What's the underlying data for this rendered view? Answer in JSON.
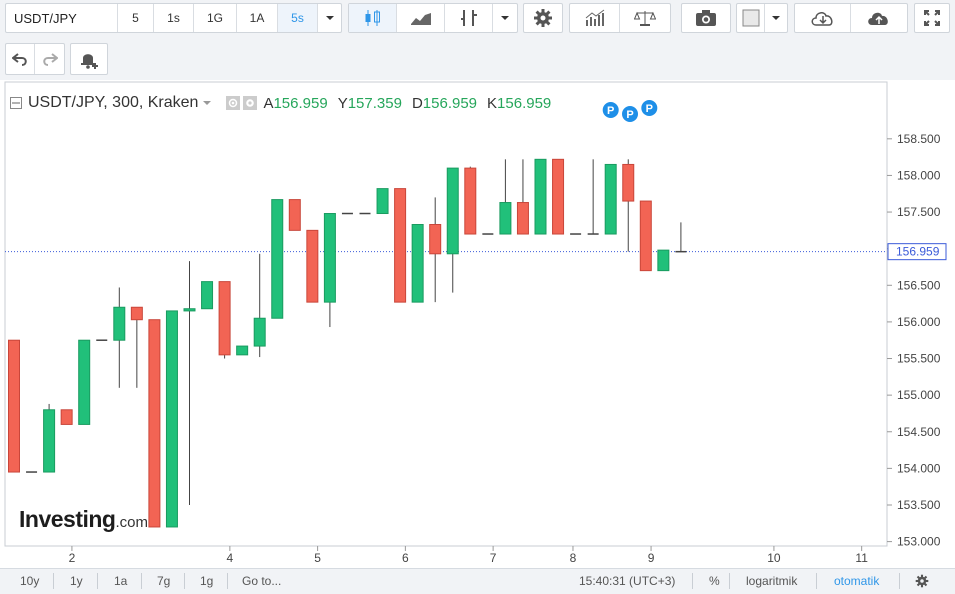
{
  "toolbar": {
    "symbol": "USDT/JPY",
    "intervals": [
      {
        "label": "5",
        "active": false
      },
      {
        "label": "1s",
        "active": false
      },
      {
        "label": "1G",
        "active": false
      },
      {
        "label": "1A",
        "active": false
      },
      {
        "label": "5s",
        "active": true
      }
    ]
  },
  "legend": {
    "title": "USDT/JPY, 300, Kraken",
    "open_label": "A",
    "open": "156.959",
    "high_label": "Y",
    "high": "157.359",
    "low_label": "D",
    "low": "156.959",
    "close_label": "K",
    "close": "156.959"
  },
  "branding": {
    "logo_main": "Investing",
    "logo_suffix": ".com"
  },
  "chart_data": {
    "type": "candlestick",
    "y_ticks": [
      "158.500",
      "158.000",
      "157.500",
      "157.000",
      "156.500",
      "156.000",
      "155.500",
      "155.000",
      "154.500",
      "154.000",
      "153.500",
      "153.000"
    ],
    "y_tick_values": [
      158.5,
      158.0,
      157.5,
      157.0,
      156.5,
      156.0,
      155.5,
      155.0,
      154.5,
      154.0,
      153.5,
      153.0
    ],
    "ylim": [
      152.94,
      159.03
    ],
    "x_ticks": [
      "2",
      "4",
      "5",
      "6",
      "7",
      "8",
      "9",
      "10",
      "11"
    ],
    "x_tick_bars": [
      3.3,
      12.3,
      17.3,
      22.3,
      27.3,
      31.85,
      36.3,
      43.3,
      48.3
    ],
    "last_price": 156.959,
    "last_price_label": "156.959",
    "pivot_markers": [
      "P",
      "P",
      "P"
    ],
    "candles": [
      {
        "o": 155.75,
        "h": 155.75,
        "l": 153.95,
        "c": 153.95
      },
      {
        "o": 153.95,
        "h": 153.95,
        "l": 153.95,
        "c": 153.95
      },
      {
        "o": 153.95,
        "h": 154.88,
        "l": 153.95,
        "c": 154.8
      },
      {
        "o": 154.8,
        "h": 154.8,
        "l": 154.6,
        "c": 154.6
      },
      {
        "o": 154.6,
        "h": 155.75,
        "l": 154.6,
        "c": 155.75
      },
      {
        "o": 155.75,
        "h": 155.75,
        "l": 155.75,
        "c": 155.75
      },
      {
        "o": 155.75,
        "h": 156.47,
        "l": 155.1,
        "c": 156.2
      },
      {
        "o": 156.2,
        "h": 156.2,
        "l": 155.1,
        "c": 156.03
      },
      {
        "o": 156.03,
        "h": 156.03,
        "l": 153.2,
        "c": 153.2
      },
      {
        "o": 153.2,
        "h": 156.15,
        "l": 153.2,
        "c": 156.15
      },
      {
        "o": 156.15,
        "h": 156.83,
        "l": 153.5,
        "c": 156.18
      },
      {
        "o": 156.18,
        "h": 156.55,
        "l": 156.18,
        "c": 156.55
      },
      {
        "o": 156.55,
        "h": 156.55,
        "l": 155.5,
        "c": 155.55
      },
      {
        "o": 155.55,
        "h": 155.67,
        "l": 155.55,
        "c": 155.67
      },
      {
        "o": 155.67,
        "h": 156.93,
        "l": 155.52,
        "c": 156.05
      },
      {
        "o": 156.05,
        "h": 157.67,
        "l": 156.05,
        "c": 157.67
      },
      {
        "o": 157.67,
        "h": 157.67,
        "l": 157.25,
        "c": 157.25
      },
      {
        "o": 157.25,
        "h": 157.25,
        "l": 156.27,
        "c": 156.27
      },
      {
        "o": 156.27,
        "h": 157.48,
        "l": 155.93,
        "c": 157.48
      },
      {
        "o": 157.48,
        "h": 157.48,
        "l": 157.48,
        "c": 157.48
      },
      {
        "o": 157.48,
        "h": 157.48,
        "l": 157.48,
        "c": 157.48
      },
      {
        "o": 157.48,
        "h": 157.82,
        "l": 157.48,
        "c": 157.82
      },
      {
        "o": 157.82,
        "h": 157.82,
        "l": 156.27,
        "c": 156.27
      },
      {
        "o": 156.27,
        "h": 157.33,
        "l": 156.27,
        "c": 157.33
      },
      {
        "o": 157.33,
        "h": 157.7,
        "l": 156.27,
        "c": 156.93
      },
      {
        "o": 156.93,
        "h": 158.1,
        "l": 156.4,
        "c": 158.1
      },
      {
        "o": 158.1,
        "h": 158.12,
        "l": 157.2,
        "c": 157.2
      },
      {
        "o": 157.2,
        "h": 157.2,
        "l": 157.2,
        "c": 157.2
      },
      {
        "o": 157.2,
        "h": 158.22,
        "l": 157.2,
        "c": 157.63
      },
      {
        "o": 157.63,
        "h": 158.22,
        "l": 157.2,
        "c": 157.2
      },
      {
        "o": 157.2,
        "h": 158.22,
        "l": 157.2,
        "c": 158.22
      },
      {
        "o": 158.22,
        "h": 158.22,
        "l": 157.2,
        "c": 157.2
      },
      {
        "o": 157.2,
        "h": 157.2,
        "l": 157.2,
        "c": 157.2
      },
      {
        "o": 157.2,
        "h": 158.22,
        "l": 157.2,
        "c": 157.2
      },
      {
        "o": 157.2,
        "h": 158.15,
        "l": 157.2,
        "c": 158.15
      },
      {
        "o": 158.15,
        "h": 158.22,
        "l": 156.96,
        "c": 157.65
      },
      {
        "o": 157.65,
        "h": 157.65,
        "l": 156.7,
        "c": 156.7
      },
      {
        "o": 156.7,
        "h": 156.98,
        "l": 156.7,
        "c": 156.98
      },
      {
        "o": 156.959,
        "h": 157.359,
        "l": 156.959,
        "c": 156.959
      }
    ]
  },
  "bottombar": {
    "ranges": [
      "10y",
      "1y",
      "1a",
      "7g",
      "1g"
    ],
    "goto": "Go to...",
    "time": "15:40:31 (UTC+3)",
    "percent": "%",
    "log": "logaritmik",
    "auto": "otomatik"
  }
}
